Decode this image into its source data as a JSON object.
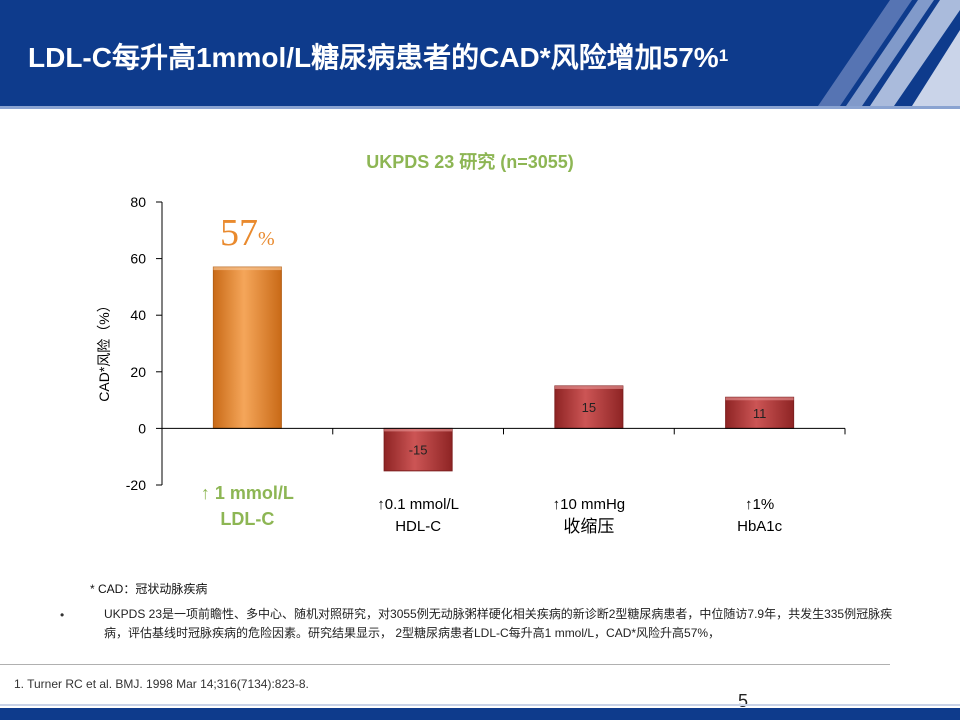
{
  "header": {
    "title": "LDL-C每升高1mmol/L糖尿病患者的CAD*风险增加57%",
    "title_ref": "1"
  },
  "colors": {
    "header_bg": "#0e3b8c",
    "highlight_bar": "#e98a2e",
    "other_bars": "#b23a3a",
    "accent_green": "#8db654"
  },
  "chart_data": {
    "type": "bar",
    "title": "UKPDS 23 研究 (n=3055)",
    "ylabel": "CAD*风险（%）",
    "xlabel": "",
    "ylim": [
      -20,
      80
    ],
    "yticks": [
      80,
      60,
      40,
      20,
      0,
      -20
    ],
    "grid": false,
    "categories": [
      {
        "line1": "↑ 1 mmol/L",
        "line2": "LDL-C"
      },
      {
        "line1": "↑0.1 mmol/L",
        "line2": "HDL-C"
      },
      {
        "line1": "↑10 mmHg",
        "line2": "收缩压"
      },
      {
        "line1": "↑1%",
        "line2": "HbA1c"
      }
    ],
    "values": [
      57,
      -15,
      15,
      11
    ],
    "data_labels": [
      "57",
      "-15",
      "15",
      "11"
    ],
    "highlight_unit": "%"
  },
  "footnotes": {
    "definition": "* CAD：冠状动脉疾病",
    "bullet": "•",
    "note": "UKPDS 23是一项前瞻性、多中心、随机对照研究，对3055例无动脉粥样硬化相关疾病的新诊断2型糖尿病患者，中位随访7.9年，共发生335例冠脉疾病，评估基线时冠脉疾病的危险因素。研究结果显示， 2型糖尿病患者LDL-C每升高1 mmol/L，CAD*风险升高57%，",
    "reference": "1.   Turner RC et al. BMJ. 1998 Mar 14;316(7134):823-8."
  },
  "page_number": "5"
}
